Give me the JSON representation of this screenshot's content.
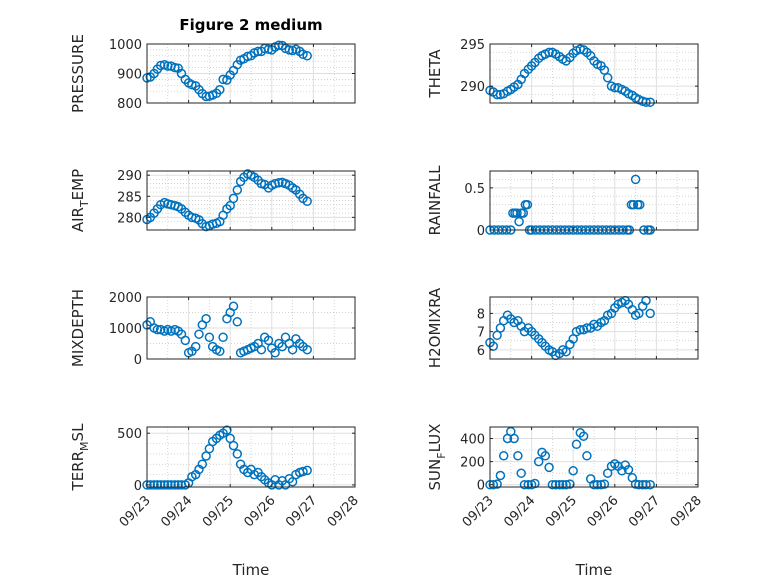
{
  "figure": {
    "title": "Figure 2 medium",
    "marker_color": "#0072BD",
    "xlabel": "Time"
  },
  "chart_data": [
    {
      "type": "scatter",
      "ylabel": "PRESSURE",
      "ylabel_parts": [
        "PRESSURE"
      ],
      "ylim": [
        800,
        1000
      ],
      "yticks": [
        800,
        900,
        1000
      ],
      "yminor": [
        840,
        860,
        880,
        920,
        940,
        960,
        980
      ],
      "xlim": [
        "09/23",
        "09/28"
      ],
      "xticks": [
        "09/23",
        "09/24",
        "09/25",
        "09/26",
        "09/27",
        "09/28"
      ],
      "grid": true,
      "show_xticklabels": false,
      "title": "Figure 2 medium",
      "x": [
        0.0,
        0.08,
        0.17,
        0.25,
        0.33,
        0.42,
        0.5,
        0.58,
        0.67,
        0.75,
        0.83,
        0.92,
        1.0,
        1.08,
        1.17,
        1.25,
        1.33,
        1.42,
        1.5,
        1.58,
        1.67,
        1.75,
        1.83,
        1.92,
        2.0,
        2.08,
        2.17,
        2.25,
        2.33,
        2.42,
        2.5,
        2.58,
        2.67,
        2.75,
        2.83,
        2.92,
        3.0,
        3.08,
        3.17,
        3.25,
        3.33,
        3.42,
        3.5,
        3.58,
        3.67,
        3.75,
        3.85
      ],
      "y": [
        885,
        888,
        900,
        915,
        927,
        930,
        925,
        925,
        920,
        918,
        900,
        880,
        868,
        862,
        858,
        845,
        832,
        822,
        823,
        827,
        833,
        845,
        880,
        878,
        895,
        910,
        930,
        945,
        950,
        958,
        960,
        970,
        975,
        975,
        985,
        982,
        980,
        990,
        996,
        995,
        985,
        980,
        978,
        982,
        975,
        965,
        960
      ]
    },
    {
      "type": "scatter",
      "ylabel": "THETA",
      "ylabel_parts": [
        "THETA"
      ],
      "ylim": [
        288,
        295
      ],
      "yticks": [
        290,
        295
      ],
      "yminor": [
        289,
        291,
        292,
        293,
        294
      ],
      "xlim": [
        "09/23",
        "09/28"
      ],
      "xticks": [
        "09/23",
        "09/24",
        "09/25",
        "09/26",
        "09/27",
        "09/28"
      ],
      "grid": true,
      "show_xticklabels": false,
      "x": [
        0.0,
        0.08,
        0.17,
        0.25,
        0.33,
        0.42,
        0.5,
        0.58,
        0.67,
        0.75,
        0.83,
        0.92,
        1.0,
        1.08,
        1.17,
        1.25,
        1.33,
        1.42,
        1.5,
        1.58,
        1.67,
        1.75,
        1.83,
        1.92,
        2.0,
        2.08,
        2.17,
        2.25,
        2.33,
        2.42,
        2.5,
        2.58,
        2.67,
        2.75,
        2.83,
        2.92,
        3.0,
        3.08,
        3.17,
        3.25,
        3.33,
        3.42,
        3.5,
        3.58,
        3.67,
        3.75,
        3.85
      ],
      "y": [
        289.5,
        289.3,
        289.0,
        289.0,
        289.1,
        289.4,
        289.6,
        289.9,
        290.2,
        290.8,
        291.5,
        292.0,
        292.4,
        292.8,
        293.3,
        293.6,
        293.8,
        294.0,
        294.0,
        293.8,
        293.5,
        293.2,
        293.0,
        293.4,
        293.9,
        294.2,
        294.4,
        294.3,
        294.0,
        293.6,
        293.0,
        292.6,
        292.4,
        291.9,
        291.0,
        290.0,
        289.8,
        289.8,
        289.6,
        289.4,
        289.1,
        288.9,
        288.6,
        288.4,
        288.2,
        288.1,
        288.1
      ]
    },
    {
      "type": "scatter",
      "ylabel": "AIR_TEMP",
      "ylabel_parts": [
        "AIR",
        "T",
        "EMP"
      ],
      "ylim": [
        277,
        291
      ],
      "yticks": [
        280,
        285,
        290
      ],
      "yminor": [
        279,
        281,
        282,
        283,
        284,
        286,
        287,
        288,
        289
      ],
      "xlim": [
        "09/23",
        "09/28"
      ],
      "xticks": [
        "09/23",
        "09/24",
        "09/25",
        "09/26",
        "09/27",
        "09/28"
      ],
      "grid": true,
      "show_xticklabels": false,
      "x": [
        0.0,
        0.08,
        0.17,
        0.25,
        0.33,
        0.42,
        0.5,
        0.58,
        0.67,
        0.75,
        0.83,
        0.92,
        1.0,
        1.08,
        1.17,
        1.25,
        1.33,
        1.42,
        1.5,
        1.58,
        1.67,
        1.75,
        1.83,
        1.92,
        2.0,
        2.08,
        2.17,
        2.25,
        2.33,
        2.42,
        2.5,
        2.58,
        2.67,
        2.75,
        2.83,
        2.92,
        3.0,
        3.08,
        3.17,
        3.25,
        3.33,
        3.42,
        3.5,
        3.58,
        3.67,
        3.75,
        3.85
      ],
      "y": [
        279.5,
        280.0,
        281.0,
        282.0,
        283.0,
        283.5,
        283.2,
        283.0,
        282.8,
        282.5,
        282.0,
        281.2,
        280.5,
        280.0,
        279.8,
        279.4,
        278.5,
        277.8,
        278.0,
        278.4,
        278.6,
        279.0,
        280.5,
        282.0,
        282.8,
        284.5,
        286.5,
        288.5,
        289.5,
        290.3,
        290.0,
        289.5,
        288.8,
        288.0,
        287.8,
        287.0,
        287.6,
        288.0,
        288.2,
        288.3,
        288.0,
        287.6,
        287.0,
        286.5,
        285.5,
        284.5,
        283.8
      ]
    },
    {
      "type": "scatter",
      "ylabel": "RAINFALL",
      "ylabel_parts": [
        "RAINFALL"
      ],
      "ylim": [
        0,
        0.7
      ],
      "yticks": [
        0,
        0.5
      ],
      "yminor": [
        0.1,
        0.2,
        0.3,
        0.4,
        0.6
      ],
      "xlim": [
        "09/23",
        "09/28"
      ],
      "xticks": [
        "09/23",
        "09/24",
        "09/25",
        "09/26",
        "09/27",
        "09/28"
      ],
      "grid": true,
      "show_xticklabels": false,
      "x": [
        0.0,
        0.1,
        0.2,
        0.3,
        0.4,
        0.5,
        0.55,
        0.6,
        0.65,
        0.7,
        0.75,
        0.8,
        0.85,
        0.9,
        0.95,
        1.0,
        1.1,
        1.2,
        1.3,
        1.4,
        1.5,
        1.6,
        1.7,
        1.8,
        1.9,
        2.0,
        2.1,
        2.2,
        2.3,
        2.4,
        2.5,
        2.6,
        2.7,
        2.8,
        2.9,
        3.0,
        3.1,
        3.2,
        3.3,
        3.35,
        3.4,
        3.45,
        3.5,
        3.55,
        3.6,
        3.7,
        3.8,
        3.85
      ],
      "y": [
        0,
        0,
        0,
        0,
        0,
        0,
        0.2,
        0.2,
        0.2,
        0.1,
        0.2,
        0.2,
        0.3,
        0.3,
        0,
        0,
        0,
        0,
        0,
        0,
        0,
        0,
        0,
        0,
        0,
        0,
        0,
        0,
        0,
        0,
        0,
        0,
        0,
        0,
        0,
        0,
        0,
        0,
        0,
        0,
        0.3,
        0.3,
        0.6,
        0.3,
        0.3,
        0,
        0,
        0
      ]
    },
    {
      "type": "scatter",
      "ylabel": "MIXDEPTH",
      "ylabel_parts": [
        "MIXDEPTH"
      ],
      "ylim": [
        0,
        2000
      ],
      "yticks": [
        0,
        1000,
        2000
      ],
      "yminor": [
        500,
        1500
      ],
      "xlim": [
        "09/23",
        "09/28"
      ],
      "xticks": [
        "09/23",
        "09/24",
        "09/25",
        "09/26",
        "09/27",
        "09/28"
      ],
      "grid": true,
      "show_xticklabels": false,
      "x": [
        0.0,
        0.08,
        0.17,
        0.25,
        0.33,
        0.42,
        0.5,
        0.58,
        0.67,
        0.75,
        0.83,
        0.92,
        1.0,
        1.08,
        1.17,
        1.25,
        1.33,
        1.42,
        1.5,
        1.58,
        1.67,
        1.75,
        1.83,
        1.92,
        2.0,
        2.08,
        2.17,
        2.25,
        2.33,
        2.42,
        2.5,
        2.58,
        2.67,
        2.75,
        2.83,
        2.92,
        3.0,
        3.08,
        3.17,
        3.25,
        3.33,
        3.42,
        3.5,
        3.58,
        3.67,
        3.75,
        3.85
      ],
      "y": [
        1100,
        1200,
        1000,
        950,
        950,
        900,
        950,
        900,
        950,
        900,
        800,
        600,
        200,
        250,
        400,
        800,
        1100,
        1300,
        700,
        400,
        300,
        250,
        700,
        1300,
        1500,
        1700,
        1200,
        200,
        250,
        300,
        350,
        400,
        500,
        300,
        700,
        600,
        350,
        200,
        500,
        400,
        700,
        500,
        300,
        650,
        500,
        400,
        300
      ]
    },
    {
      "type": "scatter",
      "ylabel": "H2OMIXRA",
      "ylabel_parts": [
        "H2OMIXRA"
      ],
      "ylim": [
        5.5,
        8.9
      ],
      "yticks": [
        6,
        7,
        8
      ],
      "yminor": [
        6.5,
        7.5,
        8.5
      ],
      "xlim": [
        "09/23",
        "09/28"
      ],
      "xticks": [
        "09/23",
        "09/24",
        "09/25",
        "09/26",
        "09/27",
        "09/28"
      ],
      "grid": true,
      "show_xticklabels": false,
      "x": [
        0.0,
        0.08,
        0.17,
        0.25,
        0.33,
        0.42,
        0.5,
        0.58,
        0.67,
        0.75,
        0.83,
        0.92,
        1.0,
        1.08,
        1.17,
        1.25,
        1.33,
        1.42,
        1.5,
        1.58,
        1.67,
        1.75,
        1.83,
        1.92,
        2.0,
        2.08,
        2.17,
        2.25,
        2.33,
        2.42,
        2.5,
        2.58,
        2.67,
        2.75,
        2.83,
        2.92,
        3.0,
        3.08,
        3.17,
        3.25,
        3.33,
        3.42,
        3.5,
        3.58,
        3.67,
        3.75,
        3.85
      ],
      "y": [
        6.4,
        6.2,
        6.8,
        7.2,
        7.6,
        7.9,
        7.7,
        7.5,
        7.6,
        7.3,
        7.0,
        7.2,
        7.0,
        6.8,
        6.6,
        6.4,
        6.2,
        6.0,
        5.9,
        5.7,
        5.8,
        6.0,
        5.9,
        6.3,
        6.6,
        7.0,
        7.1,
        7.1,
        7.2,
        7.2,
        7.4,
        7.3,
        7.5,
        7.6,
        7.9,
        8.0,
        8.3,
        8.5,
        8.6,
        8.7,
        8.5,
        8.2,
        7.9,
        8.0,
        8.4,
        8.7,
        8.0
      ]
    },
    {
      "type": "scatter",
      "ylabel": "TERR_MSL",
      "ylabel_parts": [
        "TERR",
        "M",
        "SL"
      ],
      "ylim": [
        -20,
        560
      ],
      "yticks": [
        0,
        500
      ],
      "yminor": [
        100,
        200,
        300,
        400
      ],
      "xlim": [
        "09/23",
        "09/28"
      ],
      "xticks": [
        "09/23",
        "09/24",
        "09/25",
        "09/26",
        "09/27",
        "09/28"
      ],
      "grid": true,
      "show_xticklabels": true,
      "x": [
        0.0,
        0.08,
        0.17,
        0.25,
        0.33,
        0.42,
        0.5,
        0.58,
        0.67,
        0.75,
        0.83,
        0.92,
        1.0,
        1.08,
        1.17,
        1.25,
        1.33,
        1.42,
        1.5,
        1.58,
        1.67,
        1.75,
        1.83,
        1.92,
        2.0,
        2.08,
        2.17,
        2.25,
        2.33,
        2.42,
        2.5,
        2.58,
        2.67,
        2.75,
        2.83,
        2.92,
        3.0,
        3.08,
        3.17,
        3.25,
        3.33,
        3.42,
        3.5,
        3.58,
        3.67,
        3.75,
        3.85
      ],
      "y": [
        0,
        0,
        0,
        0,
        0,
        0,
        0,
        0,
        0,
        0,
        0,
        0,
        20,
        80,
        100,
        150,
        200,
        280,
        350,
        420,
        450,
        480,
        500,
        530,
        450,
        380,
        300,
        200,
        150,
        120,
        150,
        100,
        120,
        80,
        50,
        20,
        0,
        50,
        0,
        40,
        0,
        60,
        30,
        100,
        120,
        130,
        140
      ]
    },
    {
      "type": "scatter",
      "ylabel": "SUN_FLUX",
      "ylabel_parts": [
        "SUN",
        "F",
        "LUX"
      ],
      "ylim": [
        -20,
        500
      ],
      "yticks": [
        0,
        200,
        400
      ],
      "yminor": [
        100,
        300
      ],
      "xlim": [
        "09/23",
        "09/28"
      ],
      "xticks": [
        "09/23",
        "09/24",
        "09/25",
        "09/26",
        "09/27",
        "09/28"
      ],
      "grid": true,
      "show_xticklabels": true,
      "x": [
        0.0,
        0.08,
        0.17,
        0.25,
        0.33,
        0.42,
        0.5,
        0.58,
        0.67,
        0.75,
        0.83,
        0.92,
        1.0,
        1.08,
        1.17,
        1.25,
        1.33,
        1.42,
        1.5,
        1.58,
        1.67,
        1.75,
        1.83,
        1.92,
        2.0,
        2.08,
        2.17,
        2.25,
        2.33,
        2.42,
        2.5,
        2.58,
        2.67,
        2.75,
        2.83,
        2.92,
        3.0,
        3.08,
        3.17,
        3.25,
        3.33,
        3.42,
        3.5,
        3.58,
        3.67,
        3.75,
        3.85
      ],
      "y": [
        0,
        0,
        5,
        80,
        250,
        400,
        460,
        400,
        250,
        100,
        0,
        0,
        0,
        10,
        200,
        280,
        250,
        150,
        0,
        0,
        0,
        0,
        0,
        5,
        120,
        350,
        450,
        420,
        250,
        50,
        0,
        0,
        0,
        5,
        100,
        160,
        180,
        160,
        120,
        170,
        130,
        60,
        5,
        0,
        0,
        0,
        0
      ]
    }
  ]
}
